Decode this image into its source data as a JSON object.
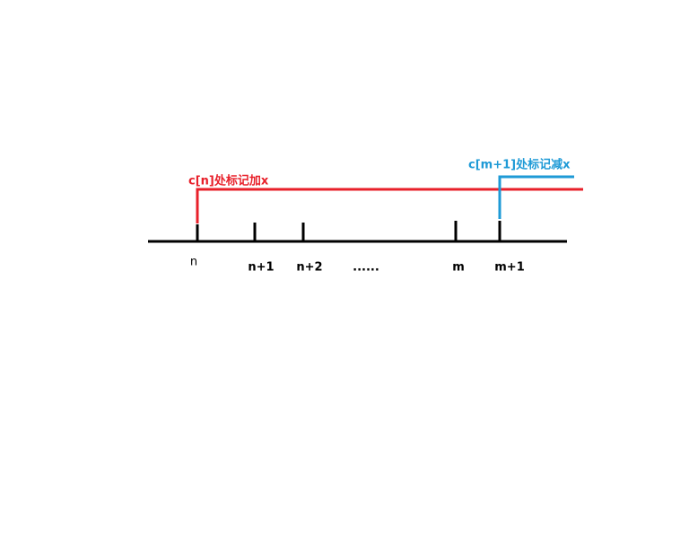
{
  "annotations": {
    "red": "c[n]处标记加x",
    "blue": "c[m+1]处标记减x"
  },
  "ticks": [
    "n",
    "n+1",
    "n+2",
    "......",
    "m",
    "m+1"
  ]
}
